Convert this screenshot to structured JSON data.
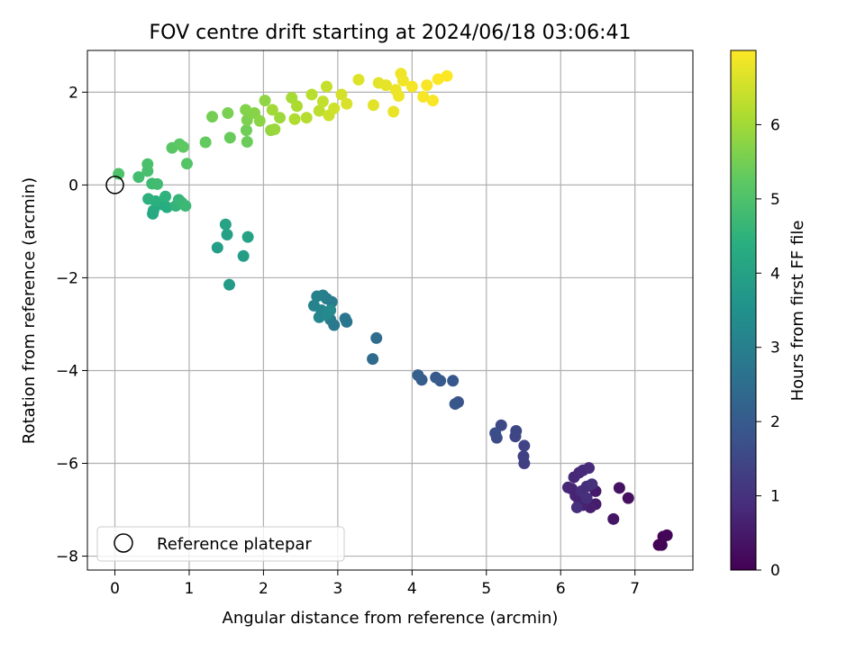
{
  "chart_data": {
    "type": "scatter",
    "title": "FOV centre drift starting at 2024/06/18 03:06:41",
    "xlabel": "Angular distance from reference (arcmin)",
    "ylabel": "Rotation from reference (arcmin)",
    "xlim": [
      -0.37,
      7.78
    ],
    "ylim": [
      -8.3,
      2.9
    ],
    "x_ticks": [
      0,
      1,
      2,
      3,
      4,
      5,
      6,
      7
    ],
    "y_ticks": [
      -8,
      -6,
      -4,
      -2,
      0,
      2
    ],
    "x_tick_labels": [
      "0",
      "1",
      "2",
      "3",
      "4",
      "5",
      "6",
      "7"
    ],
    "y_tick_labels": [
      "−8",
      "−6",
      "−4",
      "−2",
      "0",
      "2"
    ],
    "grid": true,
    "colormap": "viridis",
    "colorbar": {
      "label": "Hours from first FF file",
      "range": [
        0,
        7
      ],
      "ticks": [
        0,
        1,
        2,
        3,
        4,
        5,
        6
      ],
      "tick_labels": [
        "0",
        "1",
        "2",
        "3",
        "4",
        "5",
        "6"
      ]
    },
    "legend": {
      "position": "lower-left",
      "entries": [
        "Reference platepar"
      ]
    },
    "reference_point": {
      "x": 0,
      "y": 0,
      "style": "open-circle"
    },
    "series": [
      {
        "points": [
          {
            "x": 7.32,
            "y": -7.76,
            "t": 0.02
          },
          {
            "x": 7.36,
            "y": -7.76,
            "t": 0.05
          },
          {
            "x": 7.38,
            "y": -7.58,
            "t": 0.08
          },
          {
            "x": 7.43,
            "y": -7.55,
            "t": 0.1
          },
          {
            "x": 6.91,
            "y": -6.75,
            "t": 0.3
          },
          {
            "x": 6.79,
            "y": -6.53,
            "t": 0.35
          },
          {
            "x": 6.71,
            "y": -7.2,
            "t": 0.4
          },
          {
            "x": 6.47,
            "y": -6.6,
            "t": 0.5
          },
          {
            "x": 6.47,
            "y": -6.88,
            "t": 0.55
          },
          {
            "x": 6.4,
            "y": -6.95,
            "t": 0.6
          },
          {
            "x": 6.3,
            "y": -6.9,
            "t": 0.65
          },
          {
            "x": 6.25,
            "y": -6.8,
            "t": 0.68
          },
          {
            "x": 6.2,
            "y": -6.7,
            "t": 0.7
          },
          {
            "x": 6.15,
            "y": -6.55,
            "t": 0.72
          },
          {
            "x": 6.1,
            "y": -6.52,
            "t": 0.75
          },
          {
            "x": 6.18,
            "y": -6.3,
            "t": 0.78
          },
          {
            "x": 6.25,
            "y": -6.2,
            "t": 0.8
          },
          {
            "x": 6.3,
            "y": -6.15,
            "t": 0.82
          },
          {
            "x": 6.38,
            "y": -6.1,
            "t": 0.85
          },
          {
            "x": 6.35,
            "y": -6.5,
            "t": 0.88
          },
          {
            "x": 6.28,
            "y": -6.6,
            "t": 0.9
          },
          {
            "x": 6.22,
            "y": -6.95,
            "t": 0.92
          },
          {
            "x": 6.35,
            "y": -6.75,
            "t": 0.95
          },
          {
            "x": 6.42,
            "y": -6.45,
            "t": 0.98
          },
          {
            "x": 5.51,
            "y": -6.0,
            "t": 1.3
          },
          {
            "x": 5.5,
            "y": -5.85,
            "t": 1.35
          },
          {
            "x": 5.51,
            "y": -5.62,
            "t": 1.4
          },
          {
            "x": 5.39,
            "y": -5.42,
            "t": 1.45
          },
          {
            "x": 5.4,
            "y": -5.3,
            "t": 1.5
          },
          {
            "x": 5.2,
            "y": -5.18,
            "t": 1.55
          },
          {
            "x": 5.14,
            "y": -5.45,
            "t": 1.6
          },
          {
            "x": 5.12,
            "y": -5.35,
            "t": 1.65
          },
          {
            "x": 4.62,
            "y": -4.68,
            "t": 1.8
          },
          {
            "x": 4.58,
            "y": -4.72,
            "t": 1.85
          },
          {
            "x": 4.55,
            "y": -4.22,
            "t": 1.9
          },
          {
            "x": 4.38,
            "y": -4.22,
            "t": 1.95
          },
          {
            "x": 4.32,
            "y": -4.15,
            "t": 2.0
          },
          {
            "x": 4.13,
            "y": -4.2,
            "t": 2.05
          },
          {
            "x": 4.08,
            "y": -4.1,
            "t": 2.1
          },
          {
            "x": 3.47,
            "y": -3.75,
            "t": 2.4
          },
          {
            "x": 3.52,
            "y": -3.3,
            "t": 2.5
          },
          {
            "x": 3.12,
            "y": -2.95,
            "t": 2.7
          },
          {
            "x": 3.1,
            "y": -2.88,
            "t": 2.75
          },
          {
            "x": 2.95,
            "y": -3.02,
            "t": 2.8
          },
          {
            "x": 2.9,
            "y": -2.9,
            "t": 2.85
          },
          {
            "x": 2.92,
            "y": -2.52,
            "t": 2.9
          },
          {
            "x": 2.85,
            "y": -2.45,
            "t": 2.95
          },
          {
            "x": 2.8,
            "y": -2.38,
            "t": 3.0
          },
          {
            "x": 2.72,
            "y": -2.4,
            "t": 3.05
          },
          {
            "x": 2.68,
            "y": -2.6,
            "t": 3.1
          },
          {
            "x": 2.78,
            "y": -2.7,
            "t": 3.15
          },
          {
            "x": 2.75,
            "y": -2.85,
            "t": 3.2
          },
          {
            "x": 2.85,
            "y": -2.8,
            "t": 3.25
          },
          {
            "x": 2.9,
            "y": -2.7,
            "t": 3.3
          },
          {
            "x": 1.54,
            "y": -2.15,
            "t": 3.8
          },
          {
            "x": 1.73,
            "y": -1.53,
            "t": 3.85
          },
          {
            "x": 1.38,
            "y": -1.35,
            "t": 3.9
          },
          {
            "x": 1.51,
            "y": -1.07,
            "t": 3.95
          },
          {
            "x": 1.79,
            "y": -1.12,
            "t": 4.0
          },
          {
            "x": 1.49,
            "y": -0.85,
            "t": 4.05
          },
          {
            "x": 0.51,
            "y": -0.62,
            "t": 4.2
          },
          {
            "x": 0.52,
            "y": -0.55,
            "t": 4.25
          },
          {
            "x": 0.63,
            "y": -0.42,
            "t": 4.3
          },
          {
            "x": 0.7,
            "y": -0.48,
            "t": 4.35
          },
          {
            "x": 0.55,
            "y": -0.35,
            "t": 4.4
          },
          {
            "x": 0.45,
            "y": -0.3,
            "t": 4.45
          },
          {
            "x": 0.68,
            "y": -0.25,
            "t": 4.5
          },
          {
            "x": 0.82,
            "y": -0.45,
            "t": 4.55
          },
          {
            "x": 0.86,
            "y": -0.32,
            "t": 4.6
          },
          {
            "x": 0.9,
            "y": -0.38,
            "t": 4.65
          },
          {
            "x": 0.95,
            "y": -0.45,
            "t": 4.7
          },
          {
            "x": 0.5,
            "y": 0.03,
            "t": 4.75
          },
          {
            "x": 0.57,
            "y": 0.02,
            "t": 4.8
          },
          {
            "x": 0.32,
            "y": 0.17,
            "t": 4.85
          },
          {
            "x": 0.44,
            "y": 0.3,
            "t": 4.9
          },
          {
            "x": 0.44,
            "y": 0.45,
            "t": 4.95
          },
          {
            "x": 0.05,
            "y": 0.24,
            "t": 5.0
          },
          {
            "x": 0.97,
            "y": 0.46,
            "t": 5.1
          },
          {
            "x": 0.77,
            "y": 0.8,
            "t": 5.15
          },
          {
            "x": 0.87,
            "y": 0.88,
            "t": 5.2
          },
          {
            "x": 0.92,
            "y": 0.82,
            "t": 5.25
          },
          {
            "x": 1.22,
            "y": 0.92,
            "t": 5.3
          },
          {
            "x": 1.55,
            "y": 1.02,
            "t": 5.35
          },
          {
            "x": 1.78,
            "y": 0.93,
            "t": 5.4
          },
          {
            "x": 1.77,
            "y": 1.18,
            "t": 5.45
          },
          {
            "x": 1.31,
            "y": 1.47,
            "t": 5.5
          },
          {
            "x": 1.52,
            "y": 1.55,
            "t": 5.55
          },
          {
            "x": 1.78,
            "y": 1.4,
            "t": 5.6
          },
          {
            "x": 1.76,
            "y": 1.62,
            "t": 5.65
          },
          {
            "x": 1.88,
            "y": 1.55,
            "t": 5.7
          },
          {
            "x": 1.95,
            "y": 1.38,
            "t": 5.75
          },
          {
            "x": 2.02,
            "y": 1.82,
            "t": 5.8
          },
          {
            "x": 2.1,
            "y": 1.18,
            "t": 5.85
          },
          {
            "x": 2.15,
            "y": 1.2,
            "t": 5.9
          },
          {
            "x": 2.22,
            "y": 1.45,
            "t": 5.95
          },
          {
            "x": 2.12,
            "y": 1.62,
            "t": 6.0
          },
          {
            "x": 2.38,
            "y": 1.88,
            "t": 6.05
          },
          {
            "x": 2.45,
            "y": 1.7,
            "t": 6.1
          },
          {
            "x": 2.42,
            "y": 1.42,
            "t": 6.15
          },
          {
            "x": 2.58,
            "y": 1.45,
            "t": 6.2
          },
          {
            "x": 2.65,
            "y": 1.95,
            "t": 6.25
          },
          {
            "x": 2.75,
            "y": 1.6,
            "t": 6.3
          },
          {
            "x": 2.8,
            "y": 1.8,
            "t": 6.35
          },
          {
            "x": 2.85,
            "y": 2.12,
            "t": 6.4
          },
          {
            "x": 2.88,
            "y": 1.5,
            "t": 6.45
          },
          {
            "x": 2.95,
            "y": 1.65,
            "t": 6.5
          },
          {
            "x": 3.05,
            "y": 1.95,
            "t": 6.55
          },
          {
            "x": 3.12,
            "y": 1.75,
            "t": 6.6
          },
          {
            "x": 3.28,
            "y": 2.27,
            "t": 6.65
          },
          {
            "x": 3.48,
            "y": 1.72,
            "t": 6.7
          },
          {
            "x": 3.55,
            "y": 2.2,
            "t": 6.72
          },
          {
            "x": 3.65,
            "y": 2.15,
            "t": 6.75
          },
          {
            "x": 3.75,
            "y": 1.58,
            "t": 6.78
          },
          {
            "x": 3.78,
            "y": 2.05,
            "t": 6.8
          },
          {
            "x": 3.82,
            "y": 1.92,
            "t": 6.82
          },
          {
            "x": 3.85,
            "y": 2.4,
            "t": 6.85
          },
          {
            "x": 3.88,
            "y": 2.25,
            "t": 6.87
          },
          {
            "x": 4.0,
            "y": 2.12,
            "t": 6.9
          },
          {
            "x": 4.15,
            "y": 1.9,
            "t": 6.92
          },
          {
            "x": 4.2,
            "y": 2.15,
            "t": 6.94
          },
          {
            "x": 4.28,
            "y": 1.82,
            "t": 6.96
          },
          {
            "x": 4.35,
            "y": 2.28,
            "t": 6.98
          },
          {
            "x": 4.47,
            "y": 2.35,
            "t": 7.0
          }
        ]
      }
    ]
  }
}
